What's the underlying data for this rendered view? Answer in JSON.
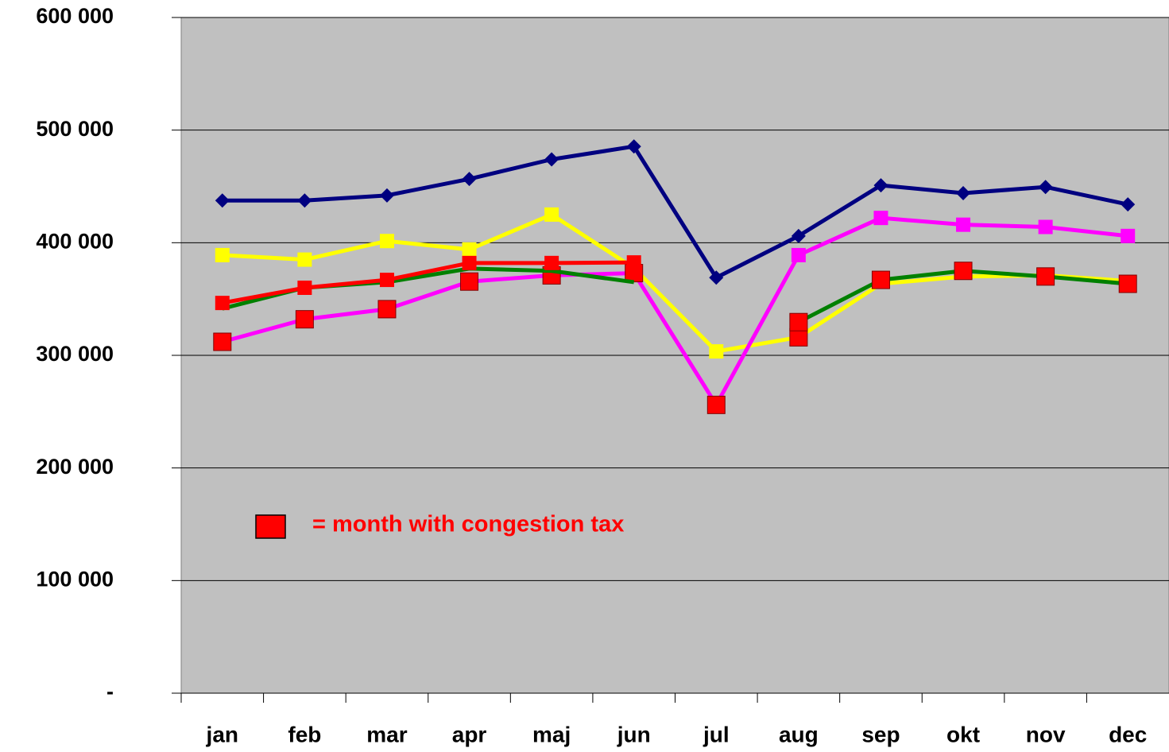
{
  "chart_data": {
    "type": "line",
    "categories": [
      "jan",
      "feb",
      "mar",
      "apr",
      "maj",
      "jun",
      "jul",
      "aug",
      "sep",
      "okt",
      "nov",
      "dec"
    ],
    "series": [
      {
        "color": "#000080",
        "marker": "diamond",
        "values": [
          437500,
          437500,
          442000,
          456600,
          474000,
          485500,
          369000,
          406000,
          451000,
          444000,
          449500,
          434000
        ],
        "marker_colors": [
          "#000080",
          "#000080",
          "#000080",
          "#000080",
          "#000080",
          "#000080",
          "#000080",
          "#000080",
          "#000080",
          "#000080",
          "#000080",
          "#000080"
        ]
      },
      {
        "color": "#ffff00",
        "marker": "square",
        "values": [
          389000,
          385000,
          401500,
          394000,
          425000,
          377500,
          303500,
          316000,
          363500,
          370000,
          371000,
          366000
        ],
        "marker_colors": [
          "#ffff00",
          "#ffff00",
          "#ffff00",
          "#ffff00",
          "#ffff00",
          "#ffff00",
          "#ffff00",
          "#ff0000",
          null,
          null,
          null,
          null
        ]
      },
      {
        "color": "#ff00ff",
        "marker": "square",
        "values": [
          312000,
          332000,
          341000,
          365500,
          371000,
          373000,
          256000,
          389000,
          422000,
          416000,
          414000,
          406000
        ],
        "marker_colors": [
          "#ff0000",
          "#ff0000",
          "#ff0000",
          "#ff0000",
          "#ff0000",
          "#ff0000",
          "#ff0000",
          "#ff00ff",
          "#ff00ff",
          "#ff00ff",
          "#ff00ff",
          "#ff00ff"
        ]
      },
      {
        "color": "#008000",
        "marker": "square",
        "values": [
          341500,
          360000,
          365000,
          377000,
          375000,
          365000,
          null,
          329500,
          367000,
          375000,
          370000,
          363500
        ],
        "marker_colors": [
          null,
          null,
          null,
          null,
          null,
          null,
          null,
          "#ff0000",
          "#ff0000",
          "#ff0000",
          "#ff0000",
          "#ff0000"
        ]
      },
      {
        "color": "#ff0000",
        "marker": "square",
        "values": [
          346500,
          360000,
          367000,
          382000,
          382000,
          382500,
          null,
          null,
          null,
          null,
          null,
          null
        ],
        "marker_colors": [
          "#ff0000",
          "#ff0000",
          "#ff0000",
          "#ff0000",
          "#ff0000",
          "#ff0000",
          null,
          null,
          null,
          null,
          null,
          null
        ]
      }
    ],
    "ylim": [
      0,
      600000
    ],
    "yticks": [
      {
        "value": 0,
        "label": "-"
      },
      {
        "value": 100000,
        "label": "100 000"
      },
      {
        "value": 200000,
        "label": "200 000"
      },
      {
        "value": 300000,
        "label": "300 000"
      },
      {
        "value": 400000,
        "label": "400 000"
      },
      {
        "value": 500000,
        "label": "500 000"
      },
      {
        "value": 600000,
        "label": "600 000"
      }
    ],
    "grid": true,
    "legend_text": "= month with congestion tax",
    "legend_color": "#ff0000",
    "plot_background": "#c0c0c0"
  }
}
